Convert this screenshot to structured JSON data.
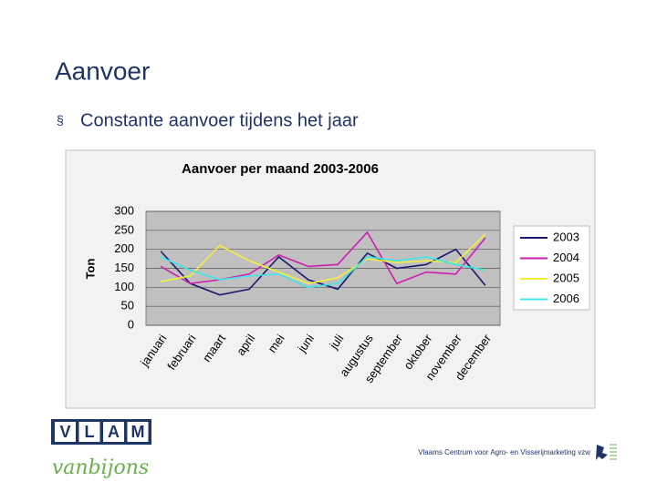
{
  "slide": {
    "title": "Aanvoer",
    "bullet_marker": "§",
    "bullet": "Constante aanvoer tijdens het jaar"
  },
  "chart_data": {
    "type": "line",
    "title": "Aanvoer per maand 2003-2006",
    "ylabel": "Ton",
    "categories": [
      "januari",
      "februari",
      "maart",
      "april",
      "mei",
      "juni",
      "juli",
      "augustus",
      "september",
      "oktober",
      "november",
      "december"
    ],
    "series": [
      {
        "name": "2003",
        "color": "#1a1a6e",
        "values": [
          195,
          110,
          80,
          95,
          180,
          120,
          95,
          190,
          150,
          160,
          200,
          105
        ]
      },
      {
        "name": "2004",
        "color": "#cc1fb0",
        "values": [
          155,
          110,
          120,
          135,
          185,
          155,
          160,
          245,
          110,
          140,
          135,
          230
        ]
      },
      {
        "name": "2005",
        "color": "#f0f03c",
        "values": [
          115,
          130,
          210,
          170,
          140,
          110,
          125,
          175,
          165,
          170,
          165,
          240
        ]
      },
      {
        "name": "2006",
        "color": "#3ee6e6",
        "values": [
          180,
          145,
          120,
          130,
          135,
          100,
          110,
          180,
          170,
          180,
          160,
          145
        ]
      }
    ],
    "ylim": [
      0,
      300
    ],
    "yticks": [
      0,
      50,
      100,
      150,
      200,
      250,
      300
    ],
    "grid": true,
    "legend": "right"
  },
  "logo": {
    "letters": [
      "V",
      "L",
      "A",
      "M"
    ],
    "tagline": "vanbijons"
  },
  "footer": {
    "text": "Vlaams Centrum voor Agro- en Visserijmarketing vzw"
  }
}
